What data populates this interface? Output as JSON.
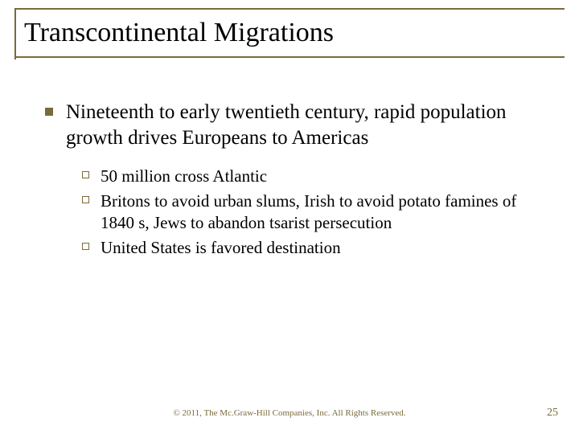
{
  "colors": {
    "accent": "#7a6a3a",
    "title_text": "#000000",
    "body_text": "#000000",
    "rule": "#7a6a3a",
    "bullet_fill": "#7a6a3a",
    "bullet_border": "#7a6a3a",
    "footer_copy": "#7a6a3a",
    "footer_num": "#7a6a3a",
    "background": "#ffffff"
  },
  "typography": {
    "title_fontsize": 34,
    "lvl1_fontsize": 25,
    "lvl2_fontsize": 21,
    "footer_copy_fontsize": 11,
    "footer_num_fontsize": 14,
    "font_family": "serif"
  },
  "title": "Transcontinental Migrations",
  "bullets": {
    "lvl1": "Nineteenth to early twentieth century, rapid population growth drives Europeans to Americas",
    "lvl2": [
      "50 million cross Atlantic",
      "Britons to avoid urban slums, Irish to avoid potato famines of 1840 s, Jews to abandon tsarist persecution",
      "United States is favored destination"
    ]
  },
  "footer": {
    "copyright": "© 2011, The Mc.Graw-Hill Companies, Inc. All Rights Reserved.",
    "page_number": "25"
  }
}
